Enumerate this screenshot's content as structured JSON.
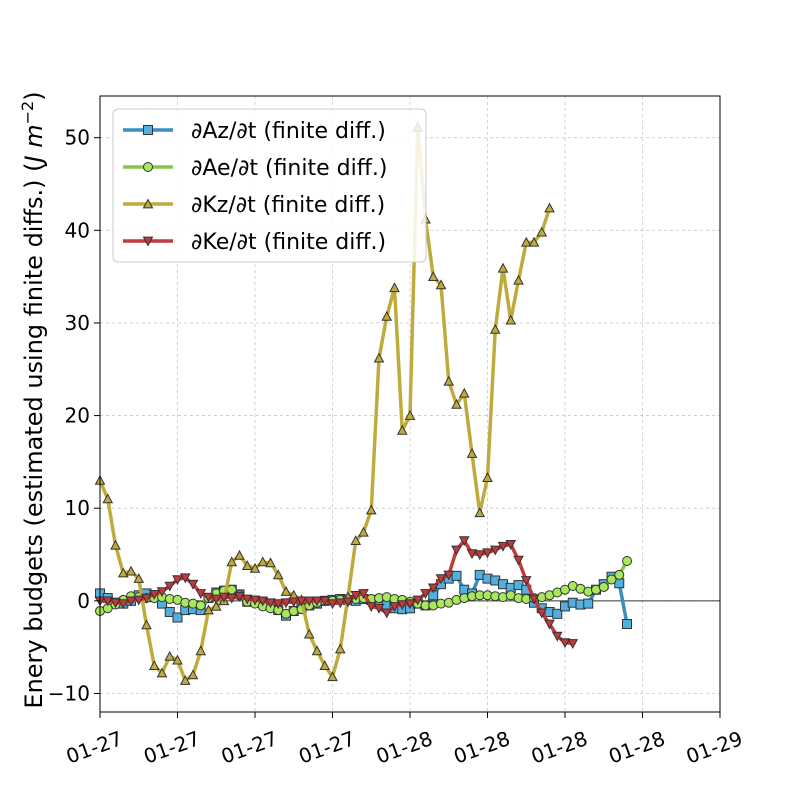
{
  "chart_data": {
    "type": "line",
    "ylabel": "Enery budgets (estimated using finite diffs.) (J m⁻²)",
    "ylabel_main": "Enery budgets (estimated using finite diffs.) (",
    "ylabel_unit": "J m",
    "ylabel_exp": "−2",
    "ylabel_close": ")",
    "xlabel": "",
    "ylim": [
      -12,
      54.5
    ],
    "xlim": [
      0,
      80
    ],
    "yticks": [
      -10,
      0,
      10,
      20,
      30,
      40,
      50
    ],
    "ytick_labels": [
      "−10",
      "0",
      "10",
      "20",
      "30",
      "40",
      "50"
    ],
    "xticks": [
      0,
      10,
      20,
      30,
      40,
      50,
      60,
      70,
      80
    ],
    "xtick_labels": [
      "01-27",
      "01-27",
      "01-27",
      "01-27",
      "01-28",
      "01-28",
      "01-28",
      "01-28",
      "01-29"
    ],
    "grid": true,
    "legend_position": "top-left",
    "series": [
      {
        "name": "∂Az/∂t (finite diff.)",
        "color": "#3a8fc0",
        "marker": "square",
        "values": [
          0.8,
          0.3,
          -0.2,
          -0.3,
          0,
          0.6,
          0.8,
          0.4,
          -0.3,
          -1.2,
          -1.8,
          -1.0,
          -0.9,
          -1.0,
          0.3,
          0.9,
          1.1,
          1.2,
          0.7,
          -0.1,
          0,
          -0.2,
          -0.5,
          -1.0,
          -1.6,
          -1.1,
          -0.8,
          -0.5,
          -0.3,
          0,
          0.1,
          0.2,
          0.1,
          0,
          0.2,
          0.1,
          -0.2,
          -0.5,
          -0.8,
          -0.9,
          -0.8,
          -0.3,
          -0.5,
          0.6,
          1.8,
          2.4,
          2.7,
          1.2,
          0.8,
          2.8,
          2.4,
          2.2,
          1.8,
          1.4,
          1.7,
          1.2,
          -0.2,
          -0.8,
          -1.2,
          -1.4,
          -0.6,
          -0.2,
          -0.4,
          -0.3,
          1.2,
          1.8,
          2.6,
          1.9,
          -2.5
        ]
      },
      {
        "name": "∂Ae/∂t (finite diff.)",
        "color": "#8bc34a",
        "marker": "circle",
        "values": [
          -1.1,
          -0.8,
          -0.4,
          0.1,
          0.5,
          0.4,
          0.3,
          0.3,
          0.4,
          0.2,
          0.1,
          -0.2,
          -0.3,
          -0.5,
          0.3,
          0.8,
          1.1,
          1.2,
          0.6,
          -0.1,
          -0.3,
          -0.6,
          -0.8,
          -1.0,
          -1.4,
          -1.1,
          -0.9,
          -0.5,
          -0.2,
          0,
          0,
          0.1,
          0.2,
          0.2,
          0.3,
          0.2,
          0.3,
          0.4,
          0.2,
          0.1,
          -0.1,
          -0.3,
          -0.5,
          -0.5,
          -0.3,
          -0.2,
          0.1,
          0.3,
          0.5,
          0.6,
          0.6,
          0.5,
          0.4,
          0.6,
          0.3,
          0.2,
          0.3,
          0.4,
          0.6,
          0.9,
          1.2,
          1.6,
          1.3,
          1.0,
          1.2,
          1.5,
          2.3,
          2.8,
          4.3
        ]
      },
      {
        "name": "∂Kz/∂t (finite diff.)",
        "color": "#bfab3c",
        "marker": "triangle-up",
        "values": [
          13,
          11,
          6,
          3,
          3.2,
          2.4,
          -2.6,
          -7,
          -7.8,
          -6,
          -6.4,
          -8.6,
          -8,
          -5.4,
          -1,
          -0.6,
          0,
          4.2,
          4.9,
          3.8,
          3.5,
          4.2,
          4.1,
          2.8,
          1,
          0.6,
          0.1,
          -3.6,
          -5.4,
          -7,
          -8.2,
          -5.2,
          0.4,
          6.5,
          7.4,
          9.8,
          26.2,
          30.7,
          33.8,
          18.4,
          20,
          51.1,
          41.2,
          35,
          34.1,
          23.7,
          21.2,
          22.4,
          15.9,
          9.5,
          13.3,
          29.3,
          35.9,
          30.3,
          34.6,
          38.7,
          38.7,
          39.8,
          42.4
        ]
      },
      {
        "name": "∂Ke/∂t (finite diff.)",
        "color": "#c0393b",
        "marker": "triangle-down",
        "values": [
          0,
          0,
          -0.2,
          -0.3,
          0,
          0.1,
          0.3,
          0.7,
          1,
          1.6,
          2.3,
          2.5,
          1.8,
          0.8,
          0.4,
          0.2,
          0.4,
          0.3,
          0.5,
          0.2,
          0.1,
          0,
          -0.2,
          -0.3,
          -0.2,
          -0.1,
          0,
          0,
          0,
          0,
          -0.3,
          -0.2,
          -0.1,
          0.6,
          0.8,
          -0.6,
          -0.8,
          -1.3,
          -0.6,
          -0.4,
          -0.3,
          0.1,
          0.8,
          1.4,
          2.4,
          2.8,
          5.5,
          6.5,
          5.1,
          5,
          5.2,
          5.5,
          5.9,
          6.1,
          4.4,
          2.2,
          0.2,
          -1.3,
          -2.5,
          -3.8,
          -4.5,
          -4.6
        ]
      }
    ]
  }
}
